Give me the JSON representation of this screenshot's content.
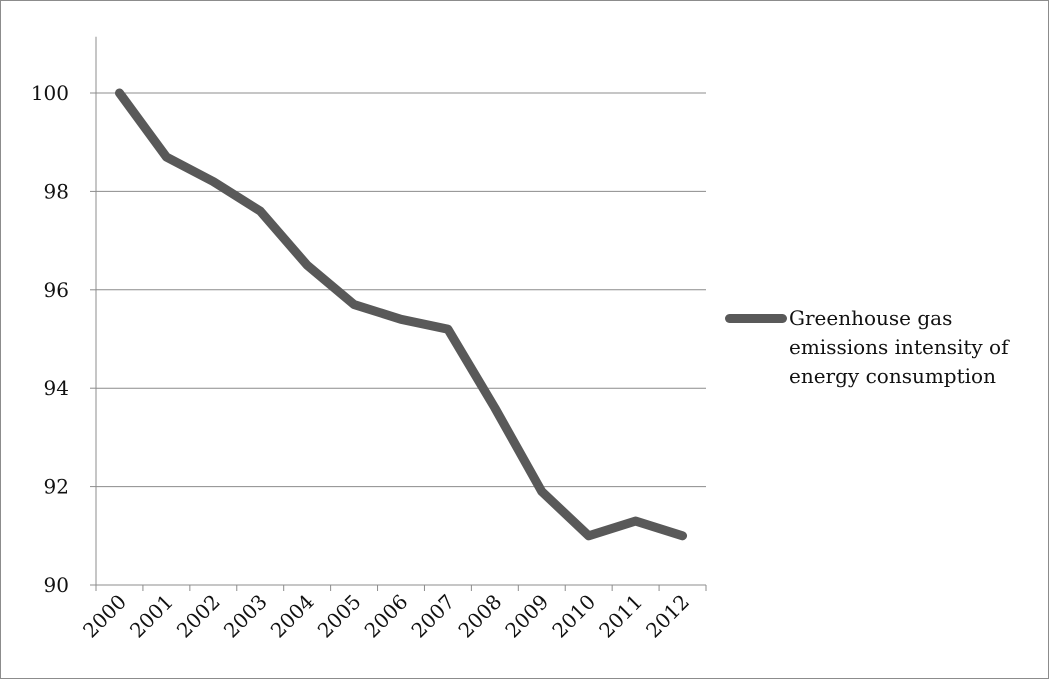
{
  "chart_data": {
    "type": "line",
    "title": "",
    "xlabel": "",
    "ylabel": "",
    "categories": [
      "2000",
      "2001",
      "2002",
      "2003",
      "2004",
      "2005",
      "2006",
      "2007",
      "2008",
      "2009",
      "2010",
      "2011",
      "2012"
    ],
    "series": [
      {
        "name": "Greenhouse gas emissions intensity of energy consumption",
        "values": [
          100,
          98.7,
          98.2,
          97.6,
          96.5,
          95.7,
          95.4,
          95.2,
          93.6,
          91.9,
          91.0,
          91.3,
          91.0
        ],
        "color": "#595959"
      }
    ],
    "ylim": [
      90,
      100
    ],
    "yticks": [
      "90",
      "92",
      "94",
      "96",
      "98",
      "100"
    ],
    "grid": "horizontal",
    "legend_position": "right"
  }
}
